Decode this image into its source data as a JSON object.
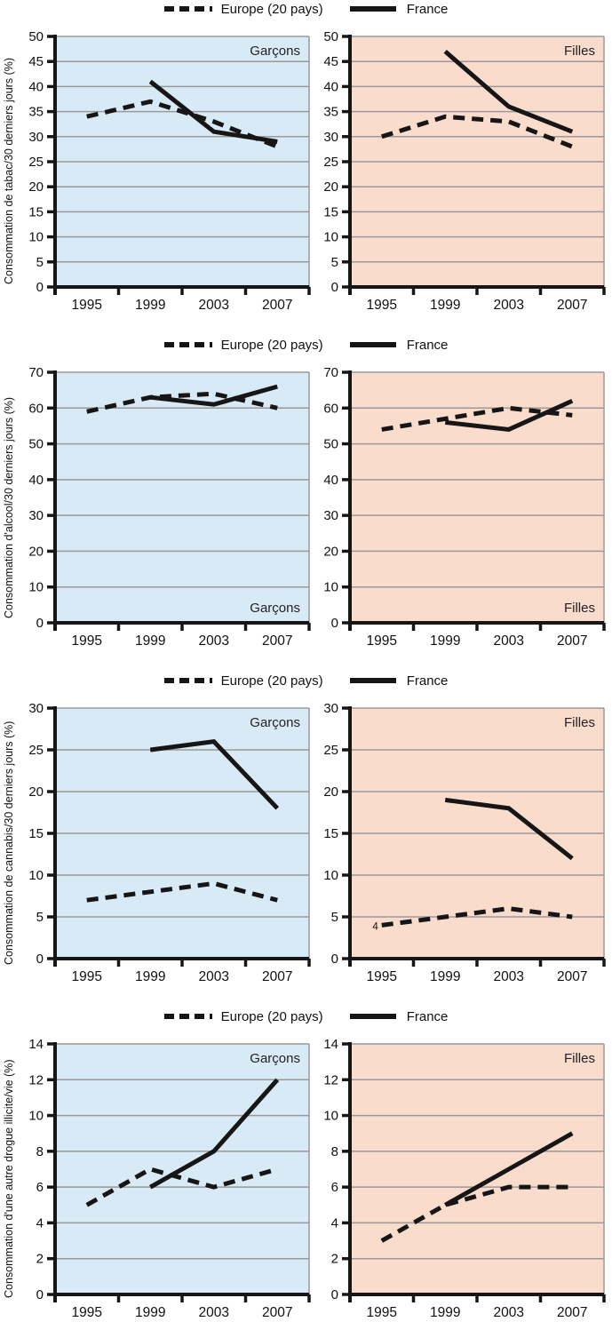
{
  "legend": {
    "europe_label": "Europe (20 pays)",
    "france_label": "France"
  },
  "colors": {
    "boys_bg": "#d8eaf6",
    "girls_bg": "#fadccd",
    "grid": "#999999",
    "axis": "#161616",
    "line": "#161616",
    "text": "#111111",
    "panel_label_text": "#222222"
  },
  "chart_data": [
    {
      "id": "tabac-garcons",
      "type": "line",
      "panel_label": "Garçons",
      "panel_label_position": "top-right",
      "background": "blue",
      "ylabel": "Consommation de tabac/30 derniers jours (%)",
      "categories": [
        "1995",
        "1999",
        "2003",
        "2007"
      ],
      "ylim": [
        0,
        50
      ],
      "ystep": 5,
      "grid": true,
      "series": [
        {
          "name": "Europe (20 pays)",
          "style": "dashed",
          "values": [
            34,
            37,
            33,
            28
          ]
        },
        {
          "name": "France",
          "style": "solid",
          "values": [
            null,
            41,
            31,
            29
          ]
        }
      ],
      "annotations": []
    },
    {
      "id": "tabac-filles",
      "type": "line",
      "panel_label": "Filles",
      "panel_label_position": "top-right",
      "background": "pink",
      "ylabel": "",
      "categories": [
        "1995",
        "1999",
        "2003",
        "2007"
      ],
      "ylim": [
        0,
        50
      ],
      "ystep": 5,
      "grid": true,
      "series": [
        {
          "name": "Europe (20 pays)",
          "style": "dashed",
          "values": [
            30,
            34,
            33,
            28
          ]
        },
        {
          "name": "France",
          "style": "solid",
          "values": [
            null,
            47,
            36,
            31
          ]
        }
      ],
      "annotations": []
    },
    {
      "id": "alcool-garcons",
      "type": "line",
      "panel_label": "Garçons",
      "panel_label_position": "bottom-right",
      "background": "blue",
      "ylabel": "Consommation d'alcool/30 derniers jours (%)",
      "categories": [
        "1995",
        "1999",
        "2003",
        "2007"
      ],
      "ylim": [
        0,
        70
      ],
      "ystep": 10,
      "grid": true,
      "series": [
        {
          "name": "Europe (20 pays)",
          "style": "dashed",
          "values": [
            59,
            63,
            64,
            60
          ]
        },
        {
          "name": "France",
          "style": "solid",
          "values": [
            null,
            63,
            61,
            66
          ]
        }
      ],
      "annotations": []
    },
    {
      "id": "alcool-filles",
      "type": "line",
      "panel_label": "Filles",
      "panel_label_position": "bottom-right",
      "background": "pink",
      "ylabel": "",
      "categories": [
        "1995",
        "1999",
        "2003",
        "2007"
      ],
      "ylim": [
        0,
        70
      ],
      "ystep": 10,
      "grid": true,
      "series": [
        {
          "name": "Europe (20 pays)",
          "style": "dashed",
          "values": [
            54,
            57,
            60,
            58
          ]
        },
        {
          "name": "France",
          "style": "solid",
          "values": [
            null,
            56,
            54,
            62
          ]
        }
      ],
      "annotations": []
    },
    {
      "id": "cannabis-garcons",
      "type": "line",
      "panel_label": "Garçons",
      "panel_label_position": "top-right",
      "background": "blue",
      "ylabel": "Consommation de cannabis/30 derniers jours (%)",
      "categories": [
        "1995",
        "1999",
        "2003",
        "2007"
      ],
      "ylim": [
        0,
        30
      ],
      "ystep": 5,
      "grid": true,
      "series": [
        {
          "name": "Europe (20 pays)",
          "style": "dashed",
          "values": [
            7,
            8,
            9,
            7
          ]
        },
        {
          "name": "France",
          "style": "solid",
          "values": [
            null,
            25,
            26,
            18
          ]
        }
      ],
      "annotations": []
    },
    {
      "id": "cannabis-filles",
      "type": "line",
      "panel_label": "Filles",
      "panel_label_position": "top-right",
      "background": "pink",
      "ylabel": "",
      "categories": [
        "1995",
        "1999",
        "2003",
        "2007"
      ],
      "ylim": [
        0,
        30
      ],
      "ystep": 5,
      "grid": true,
      "series": [
        {
          "name": "Europe (20 pays)",
          "style": "dashed",
          "values": [
            4,
            5,
            6,
            5
          ]
        },
        {
          "name": "France",
          "style": "solid",
          "values": [
            null,
            19,
            18,
            12
          ]
        }
      ],
      "annotations": [
        {
          "text": "4",
          "x": "1995",
          "y": 4
        }
      ]
    },
    {
      "id": "drogue-garcons",
      "type": "line",
      "panel_label": "Garçons",
      "panel_label_position": "top-right",
      "background": "blue",
      "ylabel": "Consommation d'une autre drogue illicite/vie (%)",
      "categories": [
        "1995",
        "1999",
        "2003",
        "2007"
      ],
      "ylim": [
        0,
        14
      ],
      "ystep": 2,
      "grid": true,
      "series": [
        {
          "name": "Europe (20 pays)",
          "style": "dashed",
          "values": [
            5,
            7,
            6,
            7
          ]
        },
        {
          "name": "France",
          "style": "solid",
          "values": [
            null,
            6,
            8,
            12
          ]
        }
      ],
      "annotations": []
    },
    {
      "id": "drogue-filles",
      "type": "line",
      "panel_label": "Filles",
      "panel_label_position": "top-right",
      "background": "pink",
      "ylabel": "",
      "categories": [
        "1995",
        "1999",
        "2003",
        "2007"
      ],
      "ylim": [
        0,
        14
      ],
      "ystep": 2,
      "grid": true,
      "series": [
        {
          "name": "Europe (20 pays)",
          "style": "dashed",
          "values": [
            3,
            5,
            6,
            6
          ]
        },
        {
          "name": "France",
          "style": "solid",
          "values": [
            null,
            5,
            7,
            9
          ]
        }
      ],
      "annotations": []
    }
  ]
}
